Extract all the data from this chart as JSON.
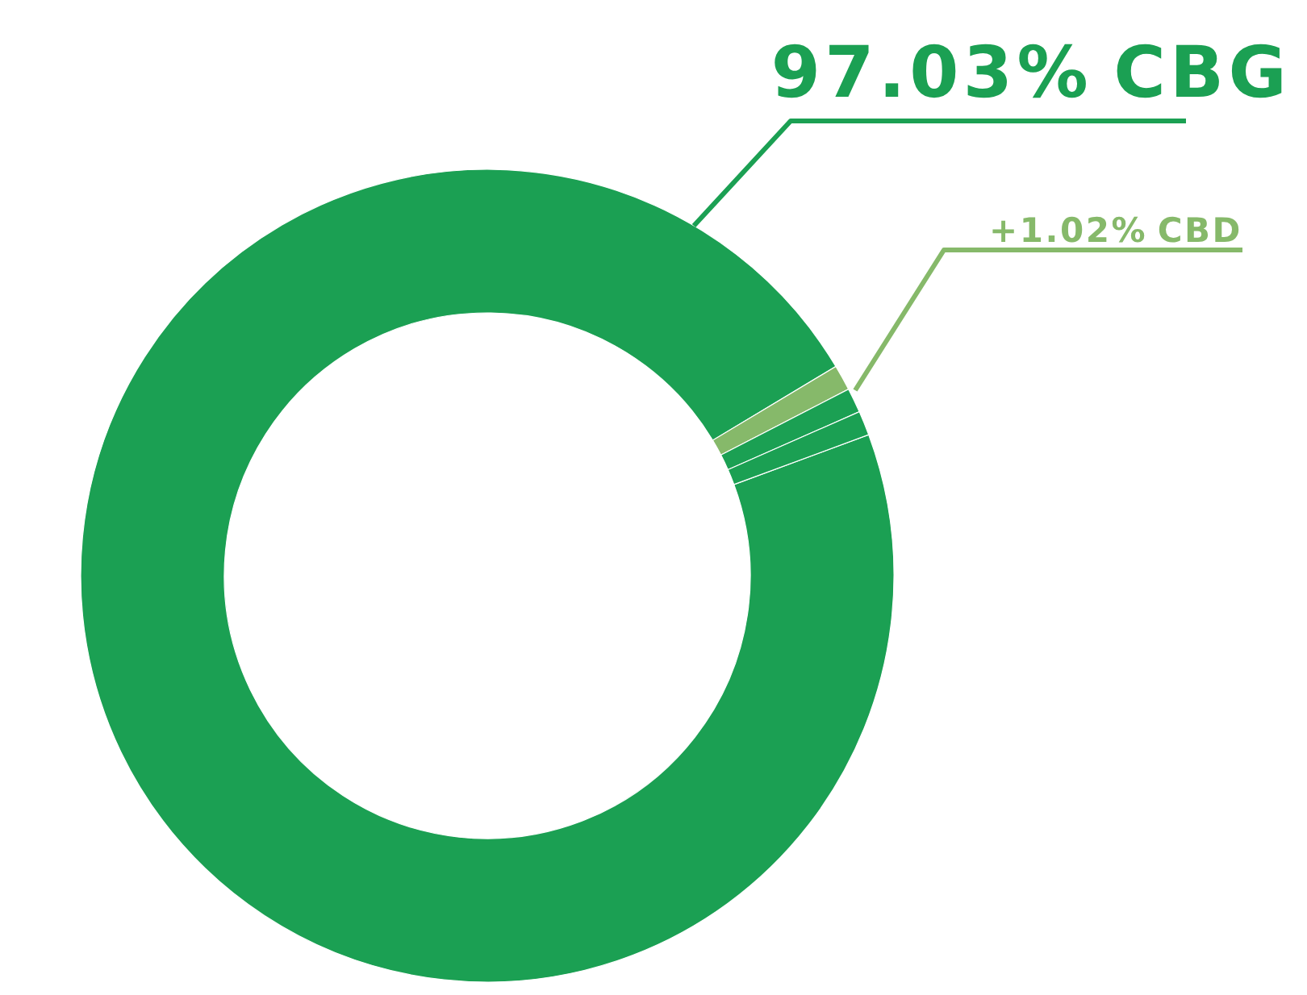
{
  "chart_data": {
    "type": "donut",
    "categories": [
      "CBG",
      "CBD",
      null,
      null
    ],
    "values": [
      97.03,
      1.02,
      0.98,
      0.97
    ],
    "colors": [
      "#1ba053",
      "#86b96a",
      "#1ba053",
      "#1ba053"
    ],
    "value_labels": [
      "97.03%",
      "+1.02%",
      null,
      null
    ]
  }
}
